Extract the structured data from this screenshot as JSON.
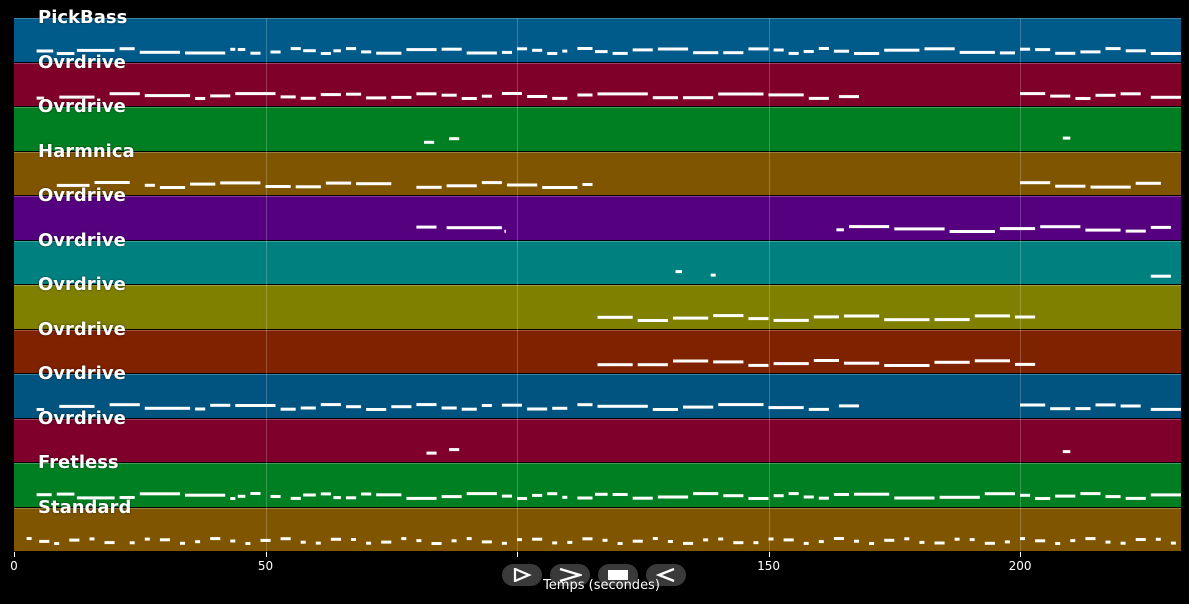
{
  "window": {
    "background": "#000000"
  },
  "chart_data": {
    "type": "piano-roll",
    "xlabel": "Temps (secondes)",
    "xlim": [
      0,
      232
    ],
    "xticks": [
      0,
      50,
      100,
      150,
      200
    ],
    "xtick_labels": [
      "0",
      "50",
      "",
      "150",
      "200"
    ],
    "grid": true,
    "tracks": [
      {
        "name": "PickBass",
        "color": "#005a8a",
        "segments": [
          [
            4.5,
            7.8
          ],
          [
            8.5,
            12
          ],
          [
            12.5,
            20
          ],
          [
            21,
            24
          ],
          [
            25,
            33
          ],
          [
            34,
            42
          ],
          [
            43,
            44
          ],
          [
            44.5,
            46
          ],
          [
            47,
            49
          ],
          [
            51,
            53
          ],
          [
            55,
            57
          ],
          [
            57.5,
            60
          ],
          [
            61,
            63
          ],
          [
            63.5,
            65
          ],
          [
            66,
            68
          ],
          [
            69,
            71
          ],
          [
            72,
            77
          ],
          [
            78,
            84
          ],
          [
            85,
            89
          ],
          [
            90,
            96
          ],
          [
            97,
            99
          ],
          [
            100,
            102
          ],
          [
            103,
            105
          ],
          [
            106,
            108
          ],
          [
            109,
            110
          ],
          [
            112,
            115
          ],
          [
            115.5,
            118
          ],
          [
            119,
            122
          ],
          [
            123,
            127
          ],
          [
            128,
            134
          ],
          [
            135,
            140
          ],
          [
            141,
            145
          ],
          [
            146,
            150
          ],
          [
            151,
            153
          ],
          [
            154,
            156
          ],
          [
            157,
            159
          ],
          [
            160,
            162
          ],
          [
            163,
            166
          ],
          [
            167,
            172
          ],
          [
            173,
            180
          ],
          [
            181,
            187
          ],
          [
            188,
            195
          ],
          [
            196,
            199
          ],
          [
            200,
            202
          ],
          [
            203,
            206
          ],
          [
            207,
            211
          ],
          [
            212,
            216
          ],
          [
            217,
            220
          ],
          [
            221,
            225
          ],
          [
            226,
            232
          ]
        ]
      },
      {
        "name": "Ovrdrive",
        "color": "#7f0028",
        "segments": [
          [
            4.5,
            6
          ],
          [
            9,
            16
          ],
          [
            19,
            25
          ],
          [
            26,
            35
          ],
          [
            36,
            38
          ],
          [
            39,
            43
          ],
          [
            44,
            52
          ],
          [
            53,
            56
          ],
          [
            57,
            60
          ],
          [
            61,
            65
          ],
          [
            66,
            69
          ],
          [
            70,
            74
          ],
          [
            75,
            79
          ],
          [
            80,
            84
          ],
          [
            85,
            88
          ],
          [
            89,
            92
          ],
          [
            93,
            95
          ],
          [
            97,
            101
          ],
          [
            102,
            106
          ],
          [
            107,
            110
          ],
          [
            112,
            115
          ],
          [
            116,
            126
          ],
          [
            127,
            132
          ],
          [
            133,
            139
          ],
          [
            140,
            149
          ],
          [
            150,
            157
          ],
          [
            158,
            162
          ],
          [
            164,
            168
          ],
          [
            200,
            205
          ],
          [
            206,
            210
          ],
          [
            211,
            214
          ],
          [
            215,
            219
          ],
          [
            220,
            224
          ],
          [
            226,
            232
          ]
        ]
      },
      {
        "name": "Ovrdrive",
        "color": "#007f22",
        "segments": [
          [
            81.5,
            83.5
          ],
          [
            86.5,
            88.5
          ],
          [
            208.5,
            210
          ]
        ]
      },
      {
        "name": "Harmnica",
        "color": "#7f5500",
        "segments": [
          [
            8.5,
            15
          ],
          [
            16,
            23
          ],
          [
            26,
            28
          ],
          [
            29,
            34
          ],
          [
            35,
            40
          ],
          [
            41,
            49
          ],
          [
            50,
            55
          ],
          [
            56,
            61
          ],
          [
            62,
            67
          ],
          [
            68,
            75
          ],
          [
            80,
            85
          ],
          [
            86,
            92
          ],
          [
            93,
            97
          ],
          [
            98,
            104
          ],
          [
            105,
            112
          ],
          [
            113,
            115
          ],
          [
            200,
            206
          ],
          [
            207,
            213
          ],
          [
            214,
            222
          ],
          [
            223,
            228
          ]
        ]
      },
      {
        "name": "Ovrdrive",
        "color": "#55007f",
        "segments": [
          [
            80,
            84
          ],
          [
            86,
            97
          ],
          [
            97.5,
            97.8
          ],
          [
            163.5,
            165
          ],
          [
            166,
            174
          ],
          [
            175,
            185
          ],
          [
            186,
            195
          ],
          [
            196,
            203
          ],
          [
            204,
            212
          ],
          [
            213,
            220
          ],
          [
            221,
            225
          ],
          [
            226,
            230
          ]
        ]
      },
      {
        "name": "Ovrdrive",
        "color": "#00807f",
        "segments": [
          [
            131.5,
            132.8
          ],
          [
            138.5,
            139.5
          ],
          [
            226,
            230
          ]
        ]
      },
      {
        "name": "Ovrdrive",
        "color": "#7f7f00",
        "segments": [
          [
            116,
            123
          ],
          [
            124,
            130
          ],
          [
            131,
            138
          ],
          [
            139,
            145
          ],
          [
            146,
            150
          ],
          [
            151,
            158
          ],
          [
            159,
            164
          ],
          [
            165,
            172
          ],
          [
            173,
            182
          ],
          [
            183,
            190
          ],
          [
            191,
            198
          ],
          [
            199,
            203
          ]
        ]
      },
      {
        "name": "Ovrdrive",
        "color": "#7f2200",
        "segments": [
          [
            116,
            123
          ],
          [
            124,
            130
          ],
          [
            131,
            138
          ],
          [
            139,
            145
          ],
          [
            146,
            150
          ],
          [
            151,
            158
          ],
          [
            159,
            164
          ],
          [
            165,
            172
          ],
          [
            173,
            182
          ],
          [
            183,
            190
          ],
          [
            191,
            198
          ],
          [
            199,
            203
          ]
        ]
      },
      {
        "name": "Ovrdrive",
        "color": "#00547f",
        "segments": [
          [
            4.5,
            6
          ],
          [
            9,
            16
          ],
          [
            19,
            25
          ],
          [
            26,
            35
          ],
          [
            36,
            38
          ],
          [
            39,
            43
          ],
          [
            44,
            52
          ],
          [
            53,
            56
          ],
          [
            57,
            60
          ],
          [
            61,
            65
          ],
          [
            66,
            69
          ],
          [
            70,
            74
          ],
          [
            75,
            79
          ],
          [
            80,
            84
          ],
          [
            85,
            88
          ],
          [
            89,
            92
          ],
          [
            93,
            95
          ],
          [
            97,
            101
          ],
          [
            102,
            106
          ],
          [
            107,
            110
          ],
          [
            112,
            115
          ],
          [
            116,
            126
          ],
          [
            127,
            132
          ],
          [
            133,
            139
          ],
          [
            140,
            149
          ],
          [
            150,
            157
          ],
          [
            158,
            162
          ],
          [
            164,
            168
          ],
          [
            200,
            205
          ],
          [
            206,
            210
          ],
          [
            211,
            214
          ],
          [
            215,
            219
          ],
          [
            220,
            224
          ],
          [
            226,
            232
          ]
        ]
      },
      {
        "name": "Ovrdrive",
        "color": "#7f002b",
        "segments": [
          [
            82,
            84
          ],
          [
            86.5,
            88.5
          ],
          [
            208.5,
            210
          ]
        ]
      },
      {
        "name": "Fretless",
        "color": "#007f22",
        "segments": [
          [
            4.5,
            7.5
          ],
          [
            8.5,
            12
          ],
          [
            12.5,
            20
          ],
          [
            21,
            24
          ],
          [
            25,
            33
          ],
          [
            34,
            42
          ],
          [
            43,
            44
          ],
          [
            44.5,
            46
          ],
          [
            47,
            49
          ],
          [
            51,
            53
          ],
          [
            55,
            57
          ],
          [
            57.5,
            60
          ],
          [
            61,
            63
          ],
          [
            63.5,
            65
          ],
          [
            66,
            68
          ],
          [
            69,
            71
          ],
          [
            72,
            77
          ],
          [
            78,
            84
          ],
          [
            85,
            89
          ],
          [
            90,
            96
          ],
          [
            97,
            99
          ],
          [
            100,
            102
          ],
          [
            103,
            105
          ],
          [
            106,
            108
          ],
          [
            109,
            110
          ],
          [
            112,
            115
          ],
          [
            115.5,
            118
          ],
          [
            119,
            122
          ],
          [
            123,
            127
          ],
          [
            128,
            134
          ],
          [
            135,
            140
          ],
          [
            141,
            145
          ],
          [
            146,
            150
          ],
          [
            151,
            153
          ],
          [
            154,
            156
          ],
          [
            157,
            159
          ],
          [
            160,
            162
          ],
          [
            163,
            166
          ],
          [
            167,
            174
          ],
          [
            175,
            183
          ],
          [
            184,
            192
          ],
          [
            193,
            199
          ],
          [
            200,
            202
          ],
          [
            203,
            206
          ],
          [
            207,
            211
          ],
          [
            212,
            216
          ],
          [
            217,
            220
          ],
          [
            221,
            225
          ],
          [
            226,
            232
          ]
        ]
      },
      {
        "name": "Standard",
        "color": "#7f5500",
        "segments": [
          [
            2.5,
            3.5
          ],
          [
            5,
            7
          ],
          [
            8,
            9
          ],
          [
            11,
            13
          ],
          [
            15,
            16
          ],
          [
            18,
            20
          ],
          [
            23,
            24
          ],
          [
            26,
            27
          ],
          [
            29,
            31
          ],
          [
            33,
            34
          ],
          [
            36,
            37
          ],
          [
            39,
            41
          ],
          [
            43,
            44
          ],
          [
            46,
            47
          ],
          [
            49,
            51
          ],
          [
            53,
            55
          ],
          [
            57,
            58
          ],
          [
            60,
            61
          ],
          [
            63,
            65
          ],
          [
            67,
            68
          ],
          [
            70,
            71
          ],
          [
            73,
            75
          ],
          [
            77,
            78
          ],
          [
            80,
            81
          ],
          [
            83,
            85
          ],
          [
            87,
            88
          ],
          [
            90,
            91
          ],
          [
            93,
            95
          ],
          [
            97,
            98
          ],
          [
            100,
            101
          ],
          [
            103,
            105
          ],
          [
            107,
            108
          ],
          [
            110,
            111
          ],
          [
            113,
            115
          ],
          [
            117,
            118
          ],
          [
            120,
            121
          ],
          [
            123,
            125
          ],
          [
            127,
            128
          ],
          [
            130,
            131
          ],
          [
            133,
            135
          ],
          [
            137,
            138
          ],
          [
            140,
            141
          ],
          [
            143,
            145
          ],
          [
            147,
            148
          ],
          [
            150,
            151
          ],
          [
            153,
            155
          ],
          [
            157,
            158
          ],
          [
            160,
            161
          ],
          [
            163,
            165
          ],
          [
            167,
            168
          ],
          [
            170,
            171
          ],
          [
            173,
            175
          ],
          [
            177,
            178
          ],
          [
            180,
            181
          ],
          [
            183,
            185
          ],
          [
            187,
            188
          ],
          [
            190,
            191
          ],
          [
            193,
            195
          ],
          [
            197,
            198
          ],
          [
            200,
            201
          ],
          [
            203,
            205
          ],
          [
            207,
            208
          ],
          [
            210,
            211
          ],
          [
            213,
            215
          ],
          [
            217,
            218
          ],
          [
            220,
            221
          ],
          [
            223,
            225
          ],
          [
            227,
            228
          ],
          [
            230,
            231
          ]
        ]
      }
    ]
  },
  "transport": {
    "buttons": [
      {
        "name": "play-selection-button",
        "icon": "play-outline-icon"
      },
      {
        "name": "play-button",
        "icon": "play-icon"
      },
      {
        "name": "stop-button",
        "icon": "stop-icon"
      },
      {
        "name": "rewind-button",
        "icon": "rewind-icon"
      }
    ],
    "icon_color": "#ffffff",
    "button_color": "#3a3a3a"
  }
}
